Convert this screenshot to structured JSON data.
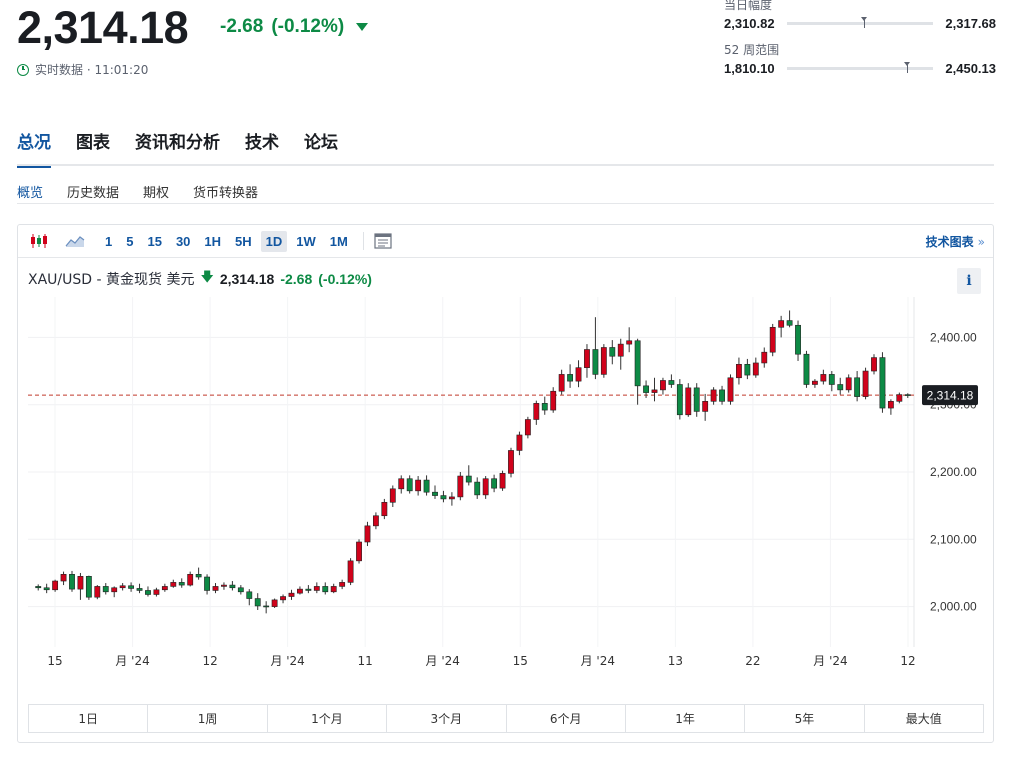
{
  "quote": {
    "price": "2,314.18",
    "change": "-2.68",
    "change_pct": "(-0.12%)",
    "realtime_label": "实时数据 · 11:01:20",
    "up_color": "#d0021b",
    "down_color": "#0d8a45"
  },
  "day_range": {
    "label": "当日幅度",
    "low": "2,310.82",
    "high": "2,317.68",
    "current_position": 0.51
  },
  "week52_range": {
    "label": "52 周范围",
    "low": "1,810.10",
    "high": "2,450.13",
    "current_position": 0.8
  },
  "tabs": [
    "总况",
    "图表",
    "资讯和分析",
    "技术",
    "论坛"
  ],
  "subtabs": [
    "概览",
    "历史数据",
    "期权",
    "货币转换器"
  ],
  "toolbar": {
    "intervals": [
      "1",
      "5",
      "15",
      "30",
      "1H",
      "5H",
      "1D",
      "1W",
      "1M"
    ],
    "selected_interval": "1D",
    "tech_chart_label": "技术图表"
  },
  "legend": {
    "symbol": "XAU/USD - 黄金现货 美元",
    "price": "2,314.18",
    "change": "-2.68",
    "change_pct": "(-0.12%)",
    "info_label": "i"
  },
  "periods": [
    "1日",
    "1周",
    "1个月",
    "3个月",
    "6个月",
    "1年",
    "5年",
    "最大值"
  ],
  "chart_data": {
    "type": "candlestick",
    "title": "XAU/USD - 黄金现货 美元",
    "ylim": [
      1940,
      2460
    ],
    "y_ticks": [
      2000,
      2100,
      2200,
      2300,
      2400
    ],
    "y_tick_labels": [
      "2,000.00",
      "2,100.00",
      "2,200.00",
      "2,300.00",
      "2,400.00"
    ],
    "x_tick_labels": [
      "15",
      "月 '24",
      "12",
      "月 '24",
      "11",
      "月 '24",
      "15",
      "月 '24",
      "13",
      "22",
      "月 '24",
      "12"
    ],
    "current_price": 2314.18,
    "current_price_label": "2,314.18",
    "grid": true,
    "series": [
      {
        "candles": [
          [
            2030,
            2033,
            2024,
            2028
          ],
          [
            2028,
            2034,
            2020,
            2025
          ],
          [
            2025,
            2040,
            2022,
            2038
          ],
          [
            2038,
            2052,
            2032,
            2048
          ],
          [
            2048,
            2053,
            2022,
            2026
          ],
          [
            2026,
            2050,
            2010,
            2045
          ],
          [
            2045,
            2046,
            2010,
            2014
          ],
          [
            2014,
            2032,
            2011,
            2030
          ],
          [
            2030,
            2035,
            2018,
            2022
          ],
          [
            2022,
            2030,
            2014,
            2028
          ],
          [
            2028,
            2035,
            2024,
            2031
          ],
          [
            2031,
            2036,
            2022,
            2027
          ],
          [
            2027,
            2034,
            2020,
            2024
          ],
          [
            2024,
            2030,
            2015,
            2018
          ],
          [
            2018,
            2028,
            2015,
            2025
          ],
          [
            2025,
            2034,
            2022,
            2030
          ],
          [
            2030,
            2040,
            2028,
            2036
          ],
          [
            2036,
            2042,
            2028,
            2032
          ],
          [
            2032,
            2052,
            2030,
            2048
          ],
          [
            2048,
            2058,
            2040,
            2044
          ],
          [
            2044,
            2048,
            2018,
            2024
          ],
          [
            2024,
            2035,
            2020,
            2030
          ],
          [
            2030,
            2036,
            2025,
            2032
          ],
          [
            2032,
            2038,
            2024,
            2028
          ],
          [
            2028,
            2032,
            2018,
            2022
          ],
          [
            2022,
            2026,
            2002,
            2012
          ],
          [
            2012,
            2020,
            1995,
            2001
          ],
          [
            2001,
            2008,
            1990,
            2000
          ],
          [
            2000,
            2012,
            1998,
            2010
          ],
          [
            2010,
            2018,
            2005,
            2015
          ],
          [
            2015,
            2025,
            2010,
            2020
          ],
          [
            2020,
            2030,
            2018,
            2026
          ],
          [
            2026,
            2032,
            2020,
            2024
          ],
          [
            2024,
            2036,
            2020,
            2030
          ],
          [
            2030,
            2036,
            2018,
            2022
          ],
          [
            2022,
            2034,
            2020,
            2030
          ],
          [
            2030,
            2040,
            2026,
            2036
          ],
          [
            2036,
            2072,
            2032,
            2068
          ],
          [
            2068,
            2100,
            2064,
            2096
          ],
          [
            2096,
            2126,
            2090,
            2120
          ],
          [
            2120,
            2140,
            2115,
            2135
          ],
          [
            2135,
            2160,
            2130,
            2155
          ],
          [
            2155,
            2180,
            2148,
            2175
          ],
          [
            2175,
            2195,
            2168,
            2190
          ],
          [
            2190,
            2195,
            2168,
            2172
          ],
          [
            2172,
            2194,
            2165,
            2188
          ],
          [
            2188,
            2195,
            2165,
            2170
          ],
          [
            2170,
            2180,
            2160,
            2165
          ],
          [
            2165,
            2172,
            2155,
            2160
          ],
          [
            2160,
            2170,
            2150,
            2163
          ],
          [
            2163,
            2200,
            2158,
            2194
          ],
          [
            2194,
            2210,
            2180,
            2185
          ],
          [
            2185,
            2192,
            2160,
            2166
          ],
          [
            2166,
            2194,
            2160,
            2190
          ],
          [
            2190,
            2196,
            2170,
            2176
          ],
          [
            2176,
            2202,
            2172,
            2198
          ],
          [
            2198,
            2236,
            2192,
            2232
          ],
          [
            2232,
            2260,
            2225,
            2255
          ],
          [
            2255,
            2282,
            2250,
            2278
          ],
          [
            2278,
            2306,
            2270,
            2302
          ],
          [
            2302,
            2312,
            2285,
            2292
          ],
          [
            2292,
            2326,
            2288,
            2320
          ],
          [
            2320,
            2352,
            2315,
            2345
          ],
          [
            2345,
            2360,
            2325,
            2335
          ],
          [
            2335,
            2366,
            2326,
            2355
          ],
          [
            2355,
            2390,
            2340,
            2382
          ],
          [
            2382,
            2430,
            2338,
            2345
          ],
          [
            2345,
            2390,
            2340,
            2385
          ],
          [
            2385,
            2396,
            2360,
            2372
          ],
          [
            2372,
            2398,
            2352,
            2390
          ],
          [
            2390,
            2415,
            2378,
            2395
          ],
          [
            2395,
            2398,
            2300,
            2328
          ],
          [
            2328,
            2336,
            2310,
            2318
          ],
          [
            2318,
            2340,
            2305,
            2322
          ],
          [
            2322,
            2340,
            2315,
            2336
          ],
          [
            2336,
            2345,
            2325,
            2330
          ],
          [
            2330,
            2338,
            2278,
            2285
          ],
          [
            2285,
            2332,
            2282,
            2325
          ],
          [
            2325,
            2332,
            2282,
            2290
          ],
          [
            2290,
            2316,
            2276,
            2305
          ],
          [
            2305,
            2326,
            2300,
            2322
          ],
          [
            2322,
            2328,
            2300,
            2305
          ],
          [
            2305,
            2345,
            2300,
            2340
          ],
          [
            2340,
            2370,
            2330,
            2360
          ],
          [
            2360,
            2368,
            2338,
            2344
          ],
          [
            2344,
            2370,
            2340,
            2362
          ],
          [
            2362,
            2385,
            2355,
            2378
          ],
          [
            2378,
            2420,
            2372,
            2415
          ],
          [
            2415,
            2432,
            2400,
            2425
          ],
          [
            2425,
            2440,
            2415,
            2418
          ],
          [
            2418,
            2425,
            2365,
            2375
          ],
          [
            2375,
            2380,
            2325,
            2330
          ],
          [
            2330,
            2338,
            2325,
            2335
          ],
          [
            2335,
            2352,
            2330,
            2345
          ],
          [
            2345,
            2350,
            2320,
            2330
          ],
          [
            2330,
            2340,
            2315,
            2322
          ],
          [
            2322,
            2345,
            2318,
            2340
          ],
          [
            2340,
            2350,
            2305,
            2312
          ],
          [
            2312,
            2355,
            2308,
            2350
          ],
          [
            2350,
            2375,
            2345,
            2370
          ],
          [
            2370,
            2378,
            2288,
            2295
          ],
          [
            2295,
            2308,
            2285,
            2305
          ],
          [
            2305,
            2318,
            2302,
            2315
          ],
          [
            2315,
            2317,
            2310,
            2314
          ]
        ]
      }
    ]
  }
}
